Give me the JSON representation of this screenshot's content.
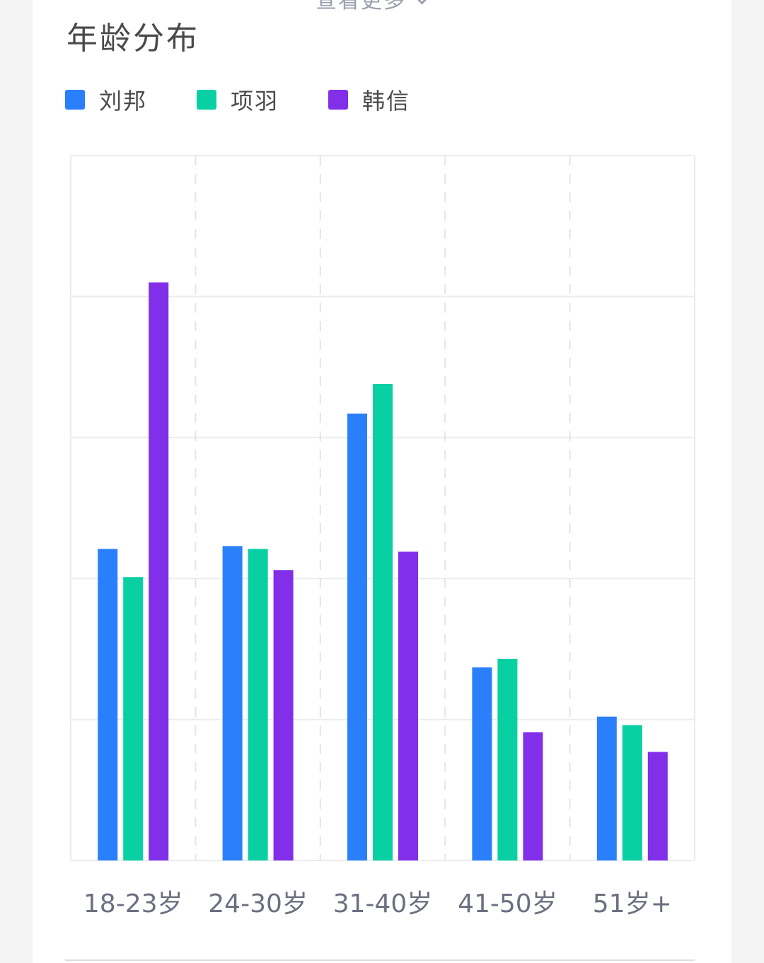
{
  "header": {
    "more_label": "查看更多"
  },
  "chart_data": {
    "type": "bar",
    "title": "年龄分布",
    "categories": [
      "18-23岁",
      "24-30岁",
      "31-40岁",
      "41-50岁",
      "51岁+"
    ],
    "series": [
      {
        "name": "刘邦",
        "color": "#2a80fc",
        "values": [
          22.1,
          22.3,
          31.7,
          13.7,
          10.2
        ]
      },
      {
        "name": "项羽",
        "color": "#08d0a3",
        "values": [
          20.1,
          22.1,
          33.8,
          14.3,
          9.6
        ]
      },
      {
        "name": "韩信",
        "color": "#812fe9",
        "values": [
          41.0,
          20.6,
          21.9,
          9.1,
          7.7
        ]
      }
    ],
    "ylim": [
      0,
      50
    ],
    "y_gridlines": [
      0,
      10,
      20,
      30,
      40,
      50
    ],
    "grid": true,
    "legend_position": "top-left",
    "xlabel": "",
    "ylabel": ""
  }
}
